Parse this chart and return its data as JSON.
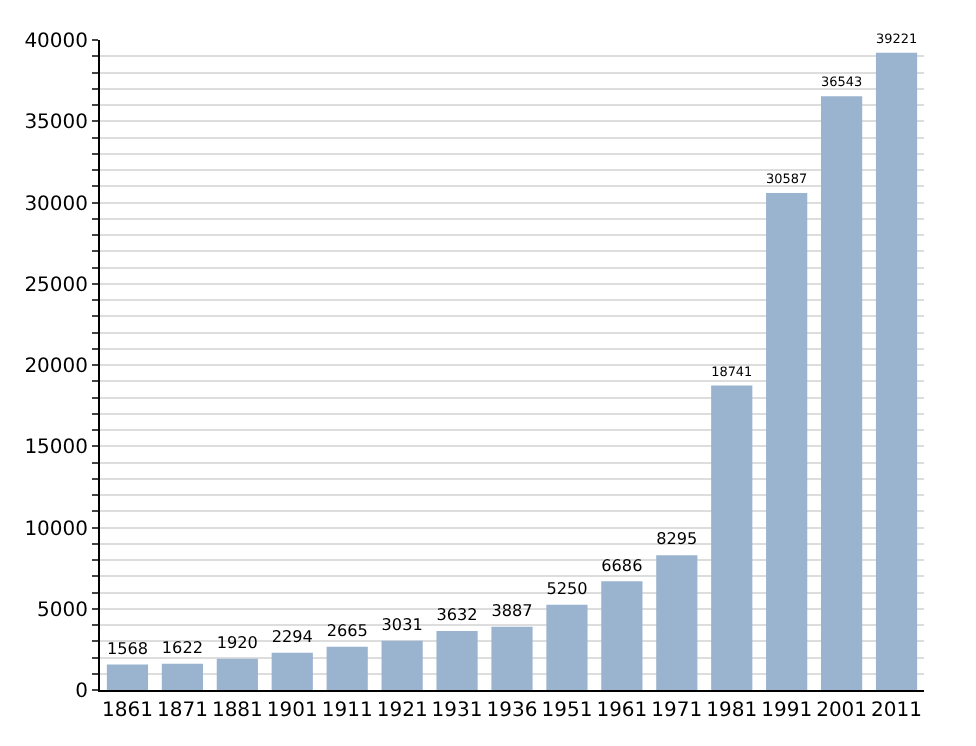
{
  "chart_data": {
    "type": "bar",
    "categories": [
      "1861",
      "1871",
      "1881",
      "1901",
      "1911",
      "1921",
      "1931",
      "1936",
      "1951",
      "1961",
      "1971",
      "1981",
      "1991",
      "2001",
      "2011"
    ],
    "values": [
      1568,
      1622,
      1920,
      2294,
      2665,
      3031,
      3632,
      3887,
      5250,
      6686,
      8295,
      18741,
      30587,
      36543,
      39221
    ],
    "color": "#9ab3cf",
    "ylim": [
      0,
      40000
    ],
    "yticks": [
      0,
      {
        "value": 1000,
        "label": null
      },
      {
        "value": 2000,
        "label": null
      },
      {
        "value": 3000,
        "label": null
      },
      {
        "value": 4000,
        "label": null
      },
      5000,
      {
        "value": 6000,
        "label": null
      },
      {
        "value": 7000,
        "label": null
      },
      {
        "value": 8000,
        "label": null
      },
      {
        "value": 9000,
        "label": null
      },
      10000,
      {
        "value": 11000,
        "label": null
      },
      {
        "value": 12000,
        "label": null
      },
      {
        "value": 13000,
        "label": null
      },
      {
        "value": 14000,
        "label": null
      },
      15000,
      {
        "value": 16000,
        "label": null
      },
      {
        "value": 17000,
        "label": null
      },
      {
        "value": 18000,
        "label": null
      },
      {
        "value": 19000,
        "label": null
      },
      20000,
      {
        "value": 21000,
        "label": null
      },
      {
        "value": 22000,
        "label": null
      },
      {
        "value": 23000,
        "label": null
      },
      {
        "value": 24000,
        "label": null
      },
      25000,
      {
        "value": 26000,
        "label": null
      },
      {
        "value": 27000,
        "label": null
      },
      {
        "value": 28000,
        "label": null
      },
      {
        "value": 29000,
        "label": null
      },
      30000,
      {
        "value": 31000,
        "label": null
      },
      {
        "value": 32000,
        "label": null
      },
      {
        "value": 33000,
        "label": null
      },
      {
        "value": 34000,
        "label": null
      },
      35000,
      {
        "value": 36000,
        "label": null
      },
      {
        "value": 37000,
        "label": null
      },
      {
        "value": 38000,
        "label": null
      },
      {
        "value": 39000,
        "label": null
      },
      40000
    ],
    "grid": "y",
    "data_labels": true
  }
}
